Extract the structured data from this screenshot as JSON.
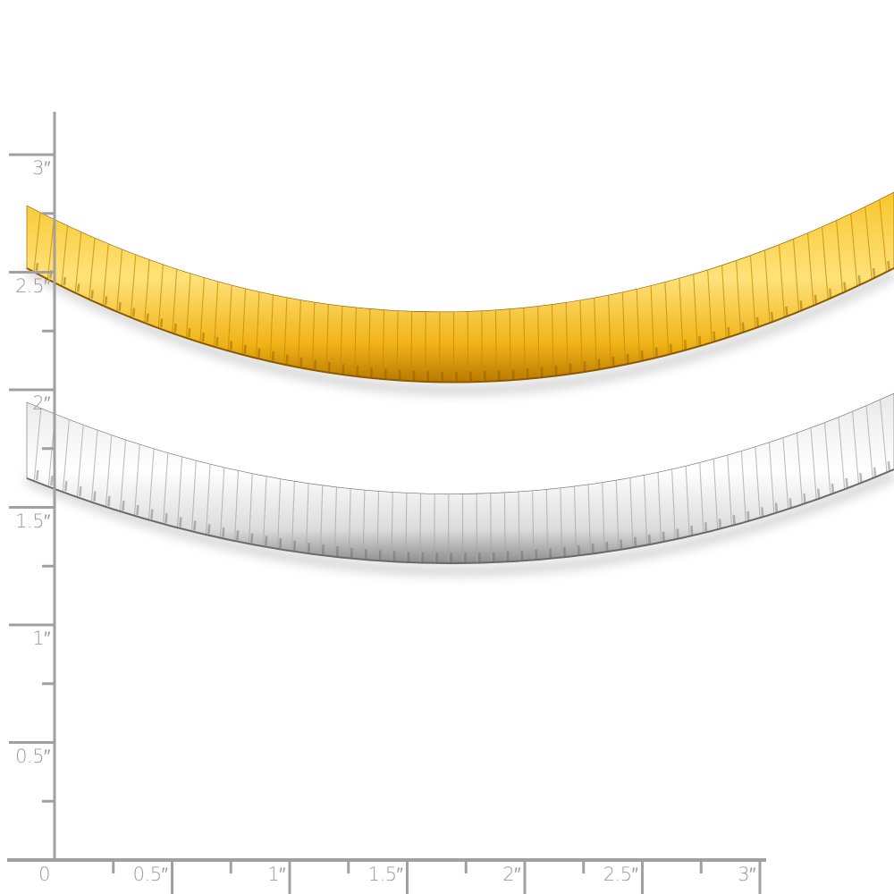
{
  "product": {
    "necklaces": [
      {
        "metal": "gold",
        "colors": {
          "light": "#ffe27a",
          "mid": "#f3b81c",
          "dark": "#c98a00",
          "edge": "#8a5a00"
        }
      },
      {
        "metal": "silver",
        "colors": {
          "light": "#ffffff",
          "mid": "#e4e4e4",
          "dark": "#a8a8a8",
          "edge": "#6a6a6a"
        }
      }
    ]
  },
  "ruler": {
    "color": "#a0a0a0",
    "vertical_labels": [
      "3″",
      "2.5″",
      "2″",
      "1.5″",
      "1″",
      "0.5″"
    ],
    "horizontal_labels": [
      "0",
      "0.5″",
      "1″",
      "1.5″",
      "2″",
      "2.5″",
      "3″"
    ]
  }
}
